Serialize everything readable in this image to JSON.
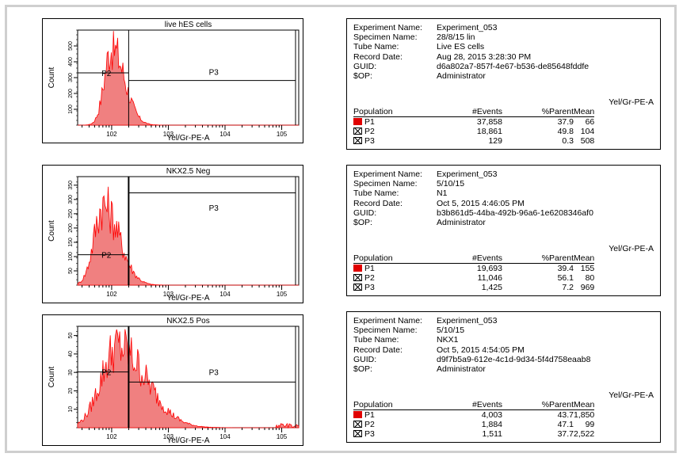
{
  "panels": [
    {
      "title": "live hES cells",
      "xlabel": "Yel/Gr-PE-A",
      "ylabel": "Count",
      "gates": [
        "P2",
        "P3"
      ],
      "experiment_name_label": "Experiment Name:",
      "experiment_name": "Experiment_053",
      "specimen_name_label": "Specimen Name:",
      "specimen_name": "28/8/15 lin",
      "tube_name_label": "Tube Name:",
      "tube_name": "Live ES cells",
      "record_date_label": "Record Date:",
      "record_date": "Aug 28, 2015 3:28:30 PM",
      "guid_label": "GUID:",
      "guid": "d6a802a7-857f-4e67-b536-de85648fddfe",
      "op_label": "$OP:",
      "op": "Administrator",
      "mean_param": "Yel/Gr-PE-A",
      "headers": {
        "population": "Population",
        "events": "#Events",
        "parent": "%Parent",
        "mean": "Mean"
      },
      "rows": [
        {
          "pop": "P1",
          "events": "37,858",
          "parent": "37.9",
          "mean": "66",
          "swatch": "fill"
        },
        {
          "pop": "P2",
          "events": "18,861",
          "parent": "49.8",
          "mean": "104",
          "swatch": "cross"
        },
        {
          "pop": "P3",
          "events": "129",
          "parent": "0.3",
          "mean": "508",
          "swatch": "cross"
        }
      ]
    },
    {
      "title": "NKX2.5 Neg",
      "xlabel": "Yel/Gr-PE-A",
      "ylabel": "Count",
      "gates": [
        "P2",
        "P3"
      ],
      "experiment_name_label": "Experiment Name:",
      "experiment_name": "Experiment_053",
      "specimen_name_label": "Specimen Name:",
      "specimen_name": "5/10/15",
      "tube_name_label": "Tube Name:",
      "tube_name": "N1",
      "record_date_label": "Record Date:",
      "record_date": "Oct 5, 2015 4:46:05 PM",
      "guid_label": "GUID:",
      "guid": "b3b861d5-44ba-492b-96a6-1e6208346af0",
      "op_label": "$OP:",
      "op": "Administrator",
      "mean_param": "Yel/Gr-PE-A",
      "headers": {
        "population": "Population",
        "events": "#Events",
        "parent": "%Parent",
        "mean": "Mean"
      },
      "rows": [
        {
          "pop": "P1",
          "events": "19,693",
          "parent": "39.4",
          "mean": "155",
          "swatch": "fill"
        },
        {
          "pop": "P2",
          "events": "11,046",
          "parent": "56.1",
          "mean": "80",
          "swatch": "cross"
        },
        {
          "pop": "P3",
          "events": "1,425",
          "parent": "7.2",
          "mean": "969",
          "swatch": "cross"
        }
      ]
    },
    {
      "title": "NKX2.5 Pos",
      "xlabel": "Yel/Gr-PE-A",
      "ylabel": "Count",
      "gates": [
        "P2",
        "P3"
      ],
      "experiment_name_label": "Experiment Name:",
      "experiment_name": "Experiment_053",
      "specimen_name_label": "Specimen Name:",
      "specimen_name": "5/10/15",
      "tube_name_label": "Tube Name:",
      "tube_name": "NKX1",
      "record_date_label": "Record Date:",
      "record_date": "Oct 5, 2015 4:54:05 PM",
      "guid_label": "GUID:",
      "guid": "d9f7b5a9-612e-4c1d-9d34-5f4d758eaab8",
      "op_label": "$OP:",
      "op": "Administrator",
      "mean_param": "Yel/Gr-PE-A",
      "headers": {
        "population": "Population",
        "events": "#Events",
        "parent": "%Parent",
        "mean": "Mean"
      },
      "rows": [
        {
          "pop": "P1",
          "events": "4,003",
          "parent": "43.7",
          "mean": "1,850",
          "swatch": "fill"
        },
        {
          "pop": "P2",
          "events": "1,884",
          "parent": "47.1",
          "mean": "99",
          "swatch": "cross"
        },
        {
          "pop": "P3",
          "events": "1,511",
          "parent": "37.7",
          "mean": "2,522",
          "swatch": "cross"
        }
      ]
    }
  ],
  "chart_data": [
    {
      "type": "area",
      "title": "live hES cells",
      "xlabel": "Yel/Gr-PE-A",
      "ylabel": "Count",
      "x_scale": "log",
      "x_tick_labels": [
        "10^2",
        "10^3",
        "10^4",
        "10^5"
      ],
      "y_tick_labels": [
        "100",
        "200",
        "300",
        "400",
        "500"
      ],
      "ylim": [
        0,
        600
      ],
      "gate_x_decade": 2.3,
      "histogram": {
        "peak_decade": 2.0,
        "peak_count": 560,
        "width": 0.2,
        "color": "#ff0000"
      }
    },
    {
      "type": "area",
      "title": "NKX2.5 Neg",
      "xlabel": "Yel/Gr-PE-A",
      "ylabel": "Count",
      "x_scale": "log",
      "x_tick_labels": [
        "10^2",
        "10^3",
        "10^4",
        "10^5"
      ],
      "y_tick_labels": [
        "50",
        "100",
        "150",
        "200",
        "250",
        "300",
        "350"
      ],
      "ylim": [
        0,
        380
      ],
      "gate_x_decade": 2.3,
      "histogram": {
        "peak_decade": 1.85,
        "peak_count": 320,
        "width": 0.25,
        "color": "#ff0000"
      }
    },
    {
      "type": "area",
      "title": "NKX2.5 Pos",
      "xlabel": "Yel/Gr-PE-A",
      "ylabel": "Count",
      "x_scale": "log",
      "x_tick_labels": [
        "10^2",
        "10^3",
        "10^4",
        "10^5"
      ],
      "y_tick_labels": [
        "10",
        "20",
        "30",
        "40",
        "50"
      ],
      "ylim": [
        0,
        55
      ],
      "gate_x_decade": 2.3,
      "histogram": {
        "peak_decade": 2.1,
        "peak_count": 50,
        "width": 0.45,
        "color": "#ff0000"
      }
    }
  ]
}
